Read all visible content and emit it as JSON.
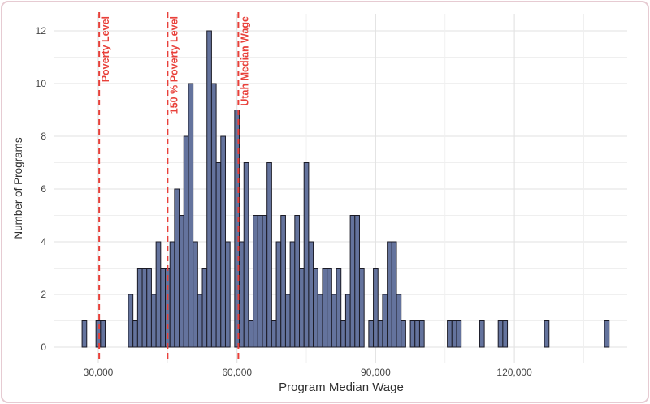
{
  "chart_data": {
    "type": "bar",
    "subtype": "histogram",
    "title": "",
    "xlabel": "Program Median Wage",
    "ylabel": "Number of Programs",
    "x_ticks": [
      30000,
      60000,
      90000,
      120000
    ],
    "x_tick_labels": [
      "30,000",
      "60,000",
      "90,000",
      "120,000"
    ],
    "y_ticks": [
      0,
      2,
      4,
      6,
      8,
      10,
      12
    ],
    "xlim": [
      20200,
      144500
    ],
    "ylim": [
      0,
      12
    ],
    "grid": "on",
    "legend": "none",
    "x_minor_grid_step": 15000,
    "y_minor_grid_step": 1,
    "bin_width": 1000,
    "bins_wage_thousands_and_count": [
      [
        27,
        1
      ],
      [
        30,
        1
      ],
      [
        31,
        1
      ],
      [
        37,
        2
      ],
      [
        38,
        1
      ],
      [
        39,
        3
      ],
      [
        40,
        3
      ],
      [
        41,
        3
      ],
      [
        42,
        2
      ],
      [
        43,
        4
      ],
      [
        44,
        3
      ],
      [
        45,
        3
      ],
      [
        46,
        4
      ],
      [
        47,
        6
      ],
      [
        48,
        5
      ],
      [
        49,
        8
      ],
      [
        50,
        10
      ],
      [
        51,
        4
      ],
      [
        52,
        2
      ],
      [
        53,
        3
      ],
      [
        54,
        12
      ],
      [
        55,
        10
      ],
      [
        56,
        7
      ],
      [
        57,
        8
      ],
      [
        58,
        4
      ],
      [
        60,
        9
      ],
      [
        61,
        4
      ],
      [
        62,
        7
      ],
      [
        63,
        1
      ],
      [
        64,
        5
      ],
      [
        65,
        5
      ],
      [
        66,
        5
      ],
      [
        67,
        7
      ],
      [
        68,
        1
      ],
      [
        69,
        4
      ],
      [
        70,
        5
      ],
      [
        71,
        2
      ],
      [
        72,
        4
      ],
      [
        73,
        5
      ],
      [
        74,
        3
      ],
      [
        75,
        7
      ],
      [
        76,
        4
      ],
      [
        77,
        3
      ],
      [
        78,
        2
      ],
      [
        79,
        3
      ],
      [
        80,
        3
      ],
      [
        81,
        2
      ],
      [
        82,
        3
      ],
      [
        83,
        1
      ],
      [
        84,
        2
      ],
      [
        85,
        5
      ],
      [
        86,
        5
      ],
      [
        87,
        3
      ],
      [
        89,
        1
      ],
      [
        90,
        3
      ],
      [
        91,
        1
      ],
      [
        92,
        2
      ],
      [
        93,
        4
      ],
      [
        94,
        4
      ],
      [
        95,
        2
      ],
      [
        96,
        1
      ],
      [
        98,
        1
      ],
      [
        99,
        1
      ],
      [
        100,
        1
      ],
      [
        106,
        1
      ],
      [
        107,
        1
      ],
      [
        108,
        1
      ],
      [
        113,
        1
      ],
      [
        117,
        1
      ],
      [
        118,
        1
      ],
      [
        127,
        1
      ],
      [
        140,
        1
      ]
    ],
    "reference_lines": [
      {
        "label": "Poverty Level",
        "value": 30200
      },
      {
        "label": "150 % Poverty Level",
        "value": 45000
      },
      {
        "label": "Utah Median Wage",
        "value": 60300
      }
    ]
  },
  "colors": {
    "bar_fill": "#64739d",
    "bar_border": "#1b1b26",
    "major_grid": "#e2e2e2",
    "minor_grid": "#efefef",
    "reference_line": "#e8403a",
    "reference_label": "#e8403a",
    "tick_label": "#454545",
    "axis_title": "#303030",
    "frame_border": "#e6cbd2",
    "background": "#ffffff"
  }
}
